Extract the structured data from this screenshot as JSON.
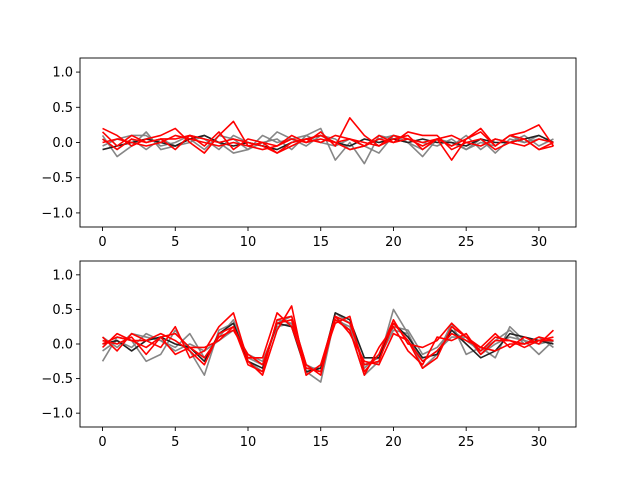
{
  "colors": {
    "gray_series": "#808080",
    "dark_series": "#222222",
    "red_series": "#ff0000",
    "axes": "#000000",
    "background": "#ffffff"
  },
  "chart_data": [
    {
      "type": "line",
      "title": "",
      "xlabel": "",
      "ylabel": "",
      "xlim": [
        -1.55,
        32.55
      ],
      "ylim": [
        -1.2,
        1.2
      ],
      "grid": false,
      "x_ticks": [
        0,
        5,
        10,
        15,
        20,
        25,
        30
      ],
      "x_tick_labels": [
        "0",
        "5",
        "10",
        "15",
        "20",
        "25",
        "30"
      ],
      "y_ticks": [
        1.0,
        0.5,
        0.0,
        -0.5,
        -1.0
      ],
      "y_tick_labels": [
        "1.0",
        "0.5",
        "0.0",
        "−0.5",
        "−1.0"
      ],
      "x": [
        0,
        1,
        2,
        3,
        4,
        5,
        6,
        7,
        8,
        9,
        10,
        11,
        12,
        13,
        14,
        15,
        16,
        17,
        18,
        19,
        20,
        21,
        22,
        23,
        24,
        25,
        26,
        27,
        28,
        29,
        30,
        31
      ],
      "series": [
        {
          "color": "#808080",
          "values": [
            0.1,
            -0.2,
            -0.05,
            0.15,
            -0.1,
            -0.05,
            0.05,
            -0.1,
            0.1,
            0.05,
            -0.1,
            0.0,
            0.05,
            -0.1,
            0.1,
            0.2,
            -0.25,
            0.0,
            -0.3,
            0.1,
            0.05,
            0.0,
            -0.1,
            0.05,
            -0.05,
            0.1,
            -0.1,
            0.05,
            0.0,
            0.1,
            -0.05,
            0.05
          ]
        },
        {
          "color": "#808080",
          "values": [
            -0.05,
            0.05,
            0.1,
            0.1,
            -0.05,
            0.0,
            0.1,
            0.05,
            -0.1,
            0.1,
            0.0,
            -0.05,
            0.15,
            0.05,
            0.1,
            0.0,
            -0.05,
            0.05,
            -0.05,
            0.05,
            0.1,
            0.0,
            -0.2,
            0.05,
            0.0,
            -0.1,
            0.05,
            -0.15,
            0.05,
            0.0,
            0.05,
            0.0
          ]
        },
        {
          "color": "#808080",
          "values": [
            0.05,
            -0.1,
            0.05,
            -0.1,
            0.05,
            -0.05,
            0.0,
            0.1,
            0.0,
            -0.15,
            -0.1,
            0.1,
            0.0,
            0.05,
            -0.05,
            0.1,
            0.05,
            -0.1,
            -0.05,
            -0.15,
            0.1,
            0.05,
            0.0,
            -0.05,
            0.05,
            -0.1,
            0.0,
            -0.05,
            0.1,
            0.0,
            0.1,
            0.0
          ]
        },
        {
          "color": "#222222",
          "values": [
            -0.1,
            -0.05,
            0.0,
            0.05,
            0.0,
            -0.05,
            0.05,
            0.1,
            0.0,
            -0.05,
            0.0,
            -0.05,
            -0.1,
            0.0,
            0.05,
            0.1,
            0.0,
            -0.05,
            0.05,
            0.0,
            0.05,
            0.0,
            0.05,
            0.0,
            0.0,
            -0.05,
            0.05,
            0.0,
            0.0,
            0.05,
            0.1,
            0.0
          ]
        },
        {
          "color": "#ff0000",
          "values": [
            0.2,
            0.1,
            -0.05,
            0.05,
            0.1,
            0.2,
            0.0,
            -0.15,
            0.1,
            0.3,
            -0.05,
            -0.1,
            -0.05,
            0.1,
            0.0,
            0.15,
            -0.05,
            0.35,
            0.1,
            -0.05,
            0.05,
            0.1,
            -0.1,
            0.05,
            -0.25,
            0.05,
            0.2,
            -0.05,
            0.1,
            0.15,
            0.25,
            -0.05
          ]
        },
        {
          "color": "#ff0000",
          "values": [
            0.0,
            0.05,
            0.0,
            -0.05,
            0.0,
            0.1,
            0.05,
            0.0,
            -0.05,
            0.0,
            -0.05,
            0.0,
            -0.15,
            -0.05,
            0.05,
            0.0,
            0.1,
            0.05,
            -0.05,
            0.05,
            0.0,
            0.15,
            0.1,
            0.1,
            -0.1,
            0.0,
            0.05,
            -0.1,
            0.0,
            0.05,
            -0.1,
            0.0
          ]
        },
        {
          "color": "#ff0000",
          "values": [
            0.05,
            -0.1,
            0.05,
            0.0,
            0.05,
            0.05,
            0.1,
            -0.05,
            0.15,
            -0.1,
            0.05,
            0.0,
            -0.05,
            0.05,
            0.0,
            0.05,
            0.0,
            -0.1,
            -0.05,
            0.1,
            0.0,
            0.05,
            -0.05,
            0.05,
            0.1,
            0.0,
            -0.05,
            0.05,
            0.0,
            -0.05,
            0.05,
            0.0
          ]
        },
        {
          "color": "#ff0000",
          "values": [
            0.15,
            -0.05,
            0.1,
            0.0,
            0.05,
            -0.1,
            0.1,
            0.05,
            0.0,
            0.05,
            0.0,
            -0.05,
            -0.15,
            0.0,
            0.05,
            0.1,
            0.0,
            0.05,
            0.0,
            -0.05,
            0.1,
            0.05,
            0.0,
            0.05,
            -0.05,
            0.05,
            0.15,
            -0.05,
            0.1,
            0.05,
            -0.1,
            -0.05
          ]
        }
      ]
    },
    {
      "type": "line",
      "title": "",
      "xlabel": "",
      "ylabel": "",
      "xlim": [
        -1.55,
        32.55
      ],
      "ylim": [
        -1.2,
        1.2
      ],
      "grid": false,
      "x_ticks": [
        0,
        5,
        10,
        15,
        20,
        25,
        30
      ],
      "x_tick_labels": [
        "0",
        "5",
        "10",
        "15",
        "20",
        "25",
        "30"
      ],
      "y_ticks": [
        1.0,
        0.5,
        0.0,
        -0.5,
        -1.0
      ],
      "y_tick_labels": [
        "1.0",
        "0.5",
        "0.0",
        "−0.5",
        "−1.0"
      ],
      "x": [
        0,
        1,
        2,
        3,
        4,
        5,
        6,
        7,
        8,
        9,
        10,
        11,
        12,
        13,
        14,
        15,
        16,
        17,
        18,
        19,
        20,
        21,
        22,
        23,
        24,
        25,
        26,
        27,
        28,
        29,
        30,
        31
      ],
      "series": [
        {
          "color": "#808080",
          "values": [
            -0.25,
            0.1,
            0.05,
            -0.25,
            -0.15,
            0.2,
            -0.1,
            -0.45,
            0.2,
            0.3,
            -0.25,
            -0.4,
            0.35,
            0.3,
            -0.4,
            -0.55,
            0.4,
            0.2,
            -0.45,
            -0.25,
            0.5,
            0.15,
            -0.35,
            -0.15,
            0.3,
            -0.15,
            -0.05,
            -0.2,
            0.25,
            0.05,
            -0.15,
            0.05
          ]
        },
        {
          "color": "#808080",
          "values": [
            0.1,
            -0.05,
            0.15,
            0.1,
            0.05,
            -0.05,
            0.15,
            -0.2,
            0.1,
            0.35,
            -0.2,
            -0.3,
            0.3,
            0.4,
            -0.3,
            -0.4,
            0.45,
            0.3,
            -0.35,
            -0.15,
            0.25,
            0.2,
            -0.15,
            -0.05,
            0.2,
            0.05,
            -0.1,
            0.05,
            0.2,
            0.0,
            0.1,
            -0.05
          ]
        },
        {
          "color": "#808080",
          "values": [
            -0.1,
            0.05,
            -0.05,
            0.15,
            0.05,
            -0.1,
            0.0,
            -0.1,
            0.05,
            0.2,
            -0.15,
            -0.25,
            0.25,
            0.3,
            -0.35,
            -0.35,
            0.35,
            0.25,
            -0.3,
            -0.2,
            0.2,
            0.15,
            -0.25,
            -0.1,
            0.1,
            0.1,
            -0.15,
            0.0,
            0.1,
            0.05,
            0.0,
            0.05
          ]
        },
        {
          "color": "#222222",
          "values": [
            0.0,
            0.05,
            -0.1,
            0.05,
            0.1,
            0.0,
            -0.05,
            -0.25,
            0.15,
            0.3,
            -0.25,
            -0.35,
            0.3,
            0.25,
            -0.4,
            -0.35,
            0.45,
            0.35,
            -0.2,
            -0.2,
            0.3,
            0.1,
            -0.2,
            -0.15,
            0.2,
            0.0,
            -0.2,
            -0.1,
            0.15,
            0.1,
            0.05,
            0.0
          ]
        },
        {
          "color": "#ff0000",
          "values": [
            0.1,
            -0.1,
            0.15,
            0.05,
            -0.05,
            0.25,
            -0.2,
            -0.1,
            0.25,
            0.45,
            -0.25,
            -0.45,
            0.2,
            0.55,
            -0.45,
            -0.3,
            0.3,
            0.4,
            -0.4,
            -0.15,
            0.35,
            0.0,
            -0.05,
            0.05,
            0.3,
            0.1,
            -0.05,
            0.15,
            -0.05,
            0.1,
            0.0,
            0.2
          ]
        },
        {
          "color": "#ff0000",
          "values": [
            -0.05,
            0.15,
            0.05,
            -0.05,
            0.1,
            0.15,
            -0.05,
            -0.05,
            0.05,
            0.25,
            -0.2,
            -0.2,
            0.45,
            0.25,
            -0.35,
            -0.4,
            0.35,
            0.2,
            -0.45,
            -0.05,
            0.25,
            -0.1,
            -0.3,
            0.1,
            0.05,
            0.15,
            -0.15,
            0.05,
            0.05,
            0.0,
            0.1,
            0.05
          ]
        },
        {
          "color": "#ff0000",
          "values": [
            0.05,
            0.0,
            0.1,
            -0.15,
            0.1,
            -0.15,
            -0.05,
            -0.2,
            0.1,
            0.2,
            -0.15,
            -0.3,
            0.3,
            0.35,
            -0.45,
            -0.3,
            0.4,
            0.3,
            -0.3,
            -0.25,
            0.3,
            0.05,
            -0.25,
            -0.1,
            0.15,
            0.05,
            -0.05,
            -0.1,
            0.0,
            0.0,
            0.05,
            0.1
          ]
        },
        {
          "color": "#ff0000",
          "values": [
            0.0,
            0.1,
            0.05,
            0.05,
            0.15,
            0.05,
            -0.1,
            -0.3,
            0.15,
            0.25,
            -0.3,
            -0.4,
            0.35,
            0.4,
            -0.3,
            -0.45,
            0.4,
            0.15,
            -0.25,
            -0.3,
            0.15,
            0.05,
            -0.35,
            -0.2,
            0.25,
            0.1,
            -0.1,
            0.1,
            0.05,
            -0.05,
            0.05,
            0.05
          ]
        }
      ]
    }
  ]
}
